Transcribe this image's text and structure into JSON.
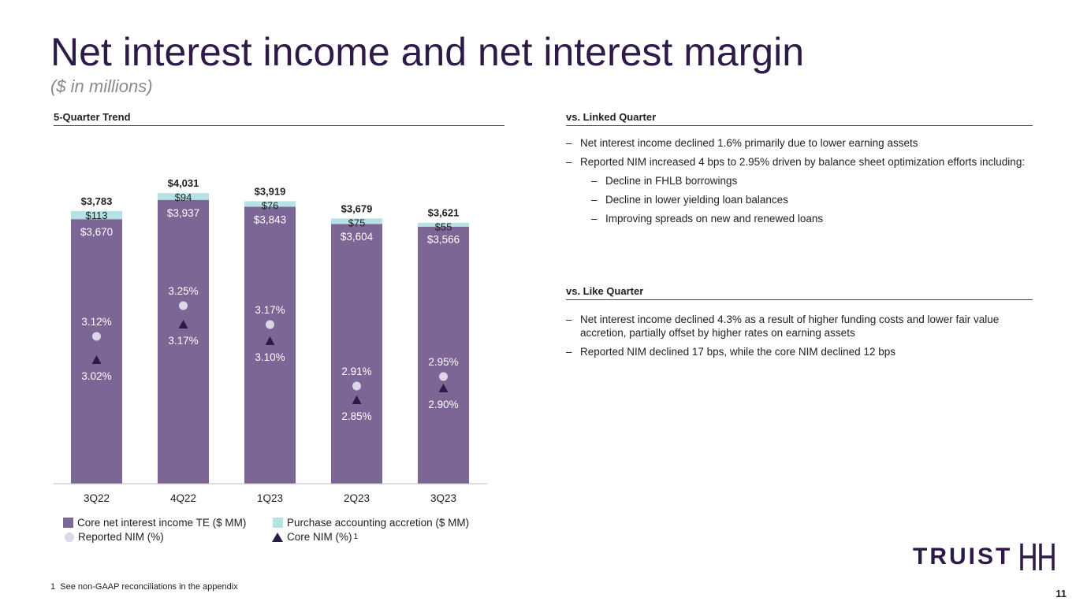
{
  "header": {
    "title": "Net interest income and net interest margin",
    "subtitle": "($ in millions)"
  },
  "sections": {
    "trend_title": "5-Quarter Trend",
    "linked_title": "vs. Linked Quarter",
    "like_title": "vs. Like Quarter"
  },
  "linked_bullets": [
    {
      "text": "Net interest income declined 1.6% primarily due to lower earning assets",
      "level": 1
    },
    {
      "text": "Reported NIM increased 4 bps to 2.95% driven by balance sheet optimization efforts including:",
      "level": 1
    },
    {
      "text": "Decline in FHLB borrowings",
      "level": 2
    },
    {
      "text": "Decline in lower yielding loan balances",
      "level": 2
    },
    {
      "text": "Improving spreads on new and renewed loans",
      "level": 2
    }
  ],
  "like_bullets": [
    {
      "text": "Net interest income declined 4.3% as a result of higher funding costs and lower fair value accretion, partially offset by higher rates on earning assets",
      "level": 1
    },
    {
      "text": "Reported NIM declined 17 bps, while the core NIM declined 12 bps",
      "level": 1
    }
  ],
  "chart_data": {
    "type": "bar",
    "stacked": true,
    "categories": [
      "3Q22",
      "4Q22",
      "1Q23",
      "2Q23",
      "3Q23"
    ],
    "totals": [
      3783,
      4031,
      3919,
      3679,
      3621
    ],
    "total_labels": [
      "$3,783",
      "$4,031",
      "$3,919",
      "$3,679",
      "$3,621"
    ],
    "series": [
      {
        "name": "Core net interest income TE ($ MM)",
        "values": [
          3670,
          3937,
          3843,
          3604,
          3566
        ],
        "labels": [
          "$3,670",
          "$3,937",
          "$3,843",
          "$3,604",
          "$3,566"
        ],
        "color": "#7b6695"
      },
      {
        "name": "Purchase accounting accretion ($ MM)",
        "values": [
          113,
          94,
          76,
          75,
          55
        ],
        "labels": [
          "$113",
          "$94",
          "$76",
          "$75",
          "$55"
        ],
        "color": "#b5e2e4"
      }
    ],
    "markers": [
      {
        "name": "Reported NIM (%)",
        "values": [
          3.12,
          3.25,
          3.17,
          2.91,
          2.95
        ],
        "labels": [
          "3.12%",
          "3.25%",
          "3.17%",
          "2.91%",
          "2.95%"
        ],
        "shape": "circle",
        "color": "#dcd6e6"
      },
      {
        "name": "Core NIM (%)",
        "values": [
          3.02,
          3.17,
          3.1,
          2.85,
          2.9
        ],
        "labels": [
          "3.02%",
          "3.17%",
          "3.10%",
          "2.85%",
          "2.90%"
        ],
        "shape": "triangle",
        "color": "#2e1a47"
      }
    ],
    "legend_placement": "bottom",
    "grid": false
  },
  "legend": {
    "core": "Core net interest income TE ($ MM)",
    "accretion": "Purchase accounting accretion ($ MM)",
    "reported_nim": "Reported NIM (%)",
    "core_nim": "Core NIM (%)",
    "core_nim_sup": "1"
  },
  "footnote": {
    "number": "1",
    "text": "See non-GAAP reconciliations in the appendix"
  },
  "page_number": "11",
  "logo": {
    "word": "TRUIST",
    "icon": "truist-hh-icon"
  }
}
